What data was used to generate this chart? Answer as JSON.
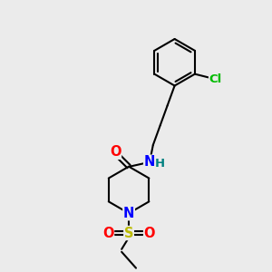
{
  "bg_color": "#ebebeb",
  "bond_color": "#000000",
  "bond_width": 1.5,
  "atom_colors": {
    "C": "#000000",
    "N": "#0000ff",
    "O": "#ff0000",
    "S": "#bbbb00",
    "Cl": "#00bb00",
    "H": "#008080"
  },
  "font_size": 9.5,
  "fig_width": 3.0,
  "fig_height": 3.0,
  "dpi": 100
}
